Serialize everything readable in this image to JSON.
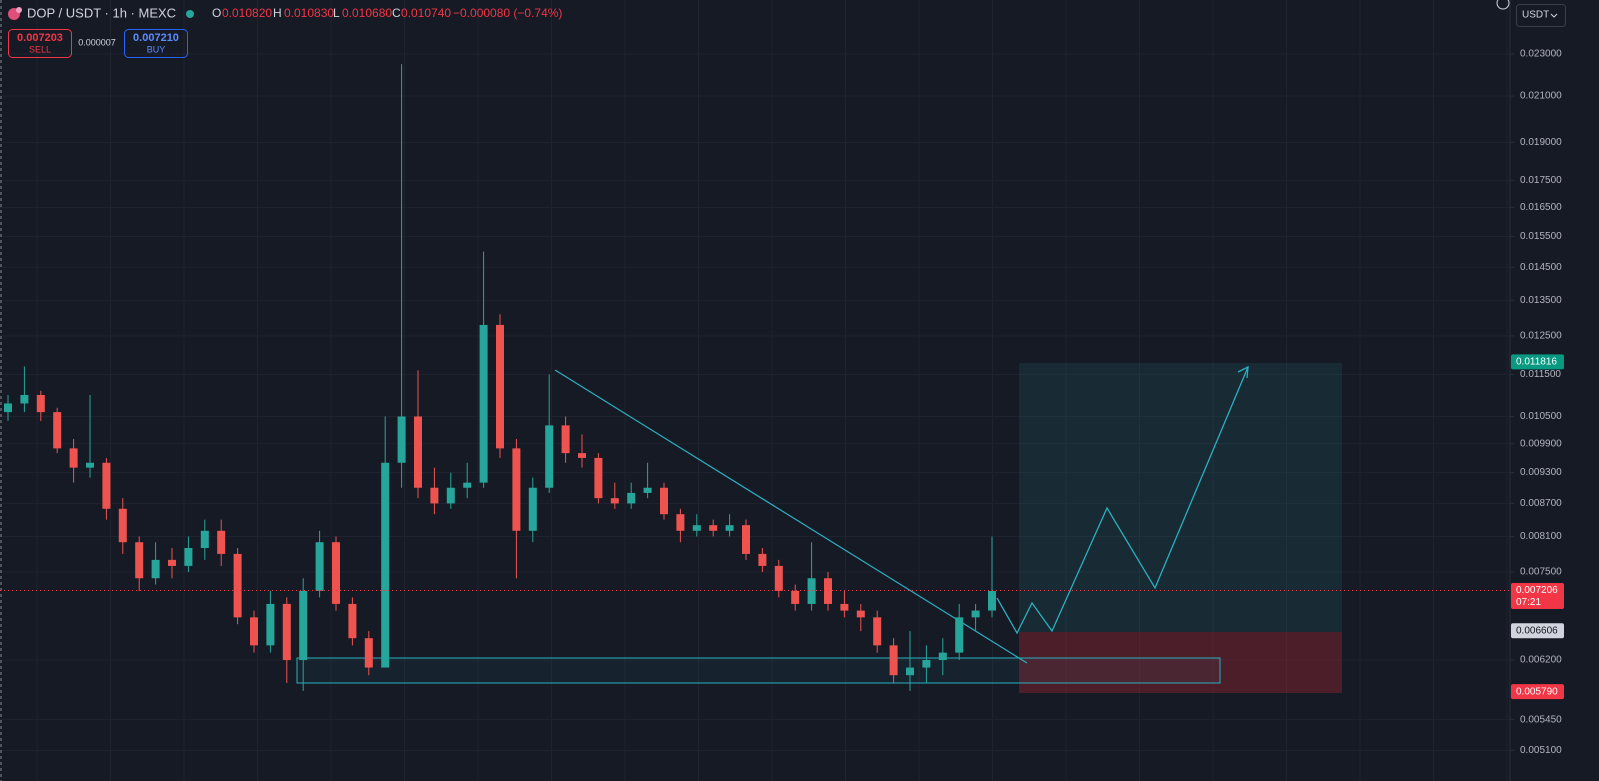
{
  "header": {
    "symbol": "DOP / USDT · 1h · MEXC",
    "o_label": "O",
    "open": "0.010820",
    "h_label": "H",
    "high": "0.010830",
    "l_label": "L",
    "low": "0.010680",
    "c_label": "C",
    "close": "0.010740",
    "change": "−0.000080 (−0.74%)",
    "sell_price": "0.007203",
    "sell_label": "SELL",
    "spread": "0.000007",
    "buy_price": "0.007210",
    "buy_label": "BUY",
    "currency": "USDT"
  },
  "chart_data": {
    "type": "candlestick",
    "log_scale": true,
    "grid": true,
    "up_color": "#26a69a",
    "down_color": "#ef5350",
    "ylim": [
      0.00493,
      0.02585
    ],
    "yticks": [
      {
        "value": 0.023,
        "label": "0.023000"
      },
      {
        "value": 0.021,
        "label": "0.021000"
      },
      {
        "value": 0.019,
        "label": "0.019000"
      },
      {
        "value": 0.0175,
        "label": "0.017500"
      },
      {
        "value": 0.0165,
        "label": "0.016500"
      },
      {
        "value": 0.0155,
        "label": "0.015500"
      },
      {
        "value": 0.0145,
        "label": "0.014500"
      },
      {
        "value": 0.0135,
        "label": "0.013500"
      },
      {
        "value": 0.0125,
        "label": "0.012500"
      },
      {
        "value": 0.0115,
        "label": "0.011500"
      },
      {
        "value": 0.0105,
        "label": "0.010500"
      },
      {
        "value": 0.0099,
        "label": "0.009900"
      },
      {
        "value": 0.0093,
        "label": "0.009300"
      },
      {
        "value": 0.0087,
        "label": "0.008700"
      },
      {
        "value": 0.0081,
        "label": "0.008100"
      },
      {
        "value": 0.0075,
        "label": "0.007500"
      },
      {
        "value": 0.0062,
        "label": "0.006200"
      },
      {
        "value": 0.00545,
        "label": "0.005450"
      },
      {
        "value": 0.0051,
        "label": "0.005100"
      }
    ],
    "candles": [
      [
        0.0106,
        0.011,
        0.0104,
        0.0108
      ],
      [
        0.0108,
        0.0117,
        0.0106,
        0.011
      ],
      [
        0.011,
        0.0111,
        0.0104,
        0.0106
      ],
      [
        0.0106,
        0.0107,
        0.0097,
        0.0098
      ],
      [
        0.0098,
        0.01,
        0.0091,
        0.0094
      ],
      [
        0.0094,
        0.011,
        0.0092,
        0.0095
      ],
      [
        0.0095,
        0.0096,
        0.0084,
        0.0086
      ],
      [
        0.0086,
        0.0088,
        0.0078,
        0.008
      ],
      [
        0.008,
        0.0081,
        0.0072,
        0.0074
      ],
      [
        0.0074,
        0.008,
        0.0073,
        0.0077
      ],
      [
        0.0077,
        0.0079,
        0.0074,
        0.0076
      ],
      [
        0.0076,
        0.0081,
        0.0075,
        0.0079
      ],
      [
        0.0079,
        0.0084,
        0.0077,
        0.0082
      ],
      [
        0.0082,
        0.0084,
        0.0076,
        0.0078
      ],
      [
        0.0078,
        0.0079,
        0.0067,
        0.0068
      ],
      [
        0.0068,
        0.0069,
        0.0063,
        0.0064
      ],
      [
        0.0064,
        0.0072,
        0.0063,
        0.007
      ],
      [
        0.007,
        0.0071,
        0.0059,
        0.0062
      ],
      [
        0.0062,
        0.0074,
        0.0058,
        0.0072
      ],
      [
        0.0072,
        0.0082,
        0.0071,
        0.008
      ],
      [
        0.008,
        0.0081,
        0.0069,
        0.007
      ],
      [
        0.007,
        0.0071,
        0.0064,
        0.0065
      ],
      [
        0.0065,
        0.0066,
        0.006,
        0.0061
      ],
      [
        0.0061,
        0.0105,
        0.0061,
        0.0095
      ],
      [
        0.0095,
        0.0225,
        0.009,
        0.0105
      ],
      [
        0.0105,
        0.0116,
        0.0088,
        0.009
      ],
      [
        0.009,
        0.0094,
        0.0085,
        0.0087
      ],
      [
        0.0087,
        0.0093,
        0.0086,
        0.009
      ],
      [
        0.009,
        0.0095,
        0.0088,
        0.0091
      ],
      [
        0.0091,
        0.015,
        0.009,
        0.0128
      ],
      [
        0.0128,
        0.0131,
        0.0096,
        0.0098
      ],
      [
        0.0098,
        0.01,
        0.0074,
        0.0082
      ],
      [
        0.0082,
        0.0092,
        0.008,
        0.009
      ],
      [
        0.009,
        0.0115,
        0.0089,
        0.0103
      ],
      [
        0.0103,
        0.0105,
        0.0095,
        0.0097
      ],
      [
        0.0097,
        0.0101,
        0.0094,
        0.0096
      ],
      [
        0.0096,
        0.0097,
        0.0087,
        0.0088
      ],
      [
        0.0088,
        0.0091,
        0.0086,
        0.0087
      ],
      [
        0.0087,
        0.0091,
        0.0086,
        0.0089
      ],
      [
        0.0089,
        0.0095,
        0.0088,
        0.009
      ],
      [
        0.009,
        0.0091,
        0.0084,
        0.0085
      ],
      [
        0.0085,
        0.0086,
        0.008,
        0.0082
      ],
      [
        0.0082,
        0.0085,
        0.0081,
        0.0083
      ],
      [
        0.0083,
        0.0084,
        0.0081,
        0.0082
      ],
      [
        0.0082,
        0.0085,
        0.0081,
        0.0083
      ],
      [
        0.0083,
        0.0084,
        0.0077,
        0.0078
      ],
      [
        0.0078,
        0.0079,
        0.0075,
        0.0076
      ],
      [
        0.0076,
        0.0077,
        0.0071,
        0.0072
      ],
      [
        0.0072,
        0.0073,
        0.0069,
        0.007
      ],
      [
        0.007,
        0.008,
        0.0069,
        0.0074
      ],
      [
        0.0074,
        0.0075,
        0.0069,
        0.007
      ],
      [
        0.007,
        0.0072,
        0.0068,
        0.0069
      ],
      [
        0.0069,
        0.007,
        0.0066,
        0.0068
      ],
      [
        0.0068,
        0.0069,
        0.0063,
        0.0064
      ],
      [
        0.0064,
        0.0065,
        0.0059,
        0.006
      ],
      [
        0.006,
        0.0066,
        0.0058,
        0.0061
      ],
      [
        0.0061,
        0.0064,
        0.0059,
        0.0062
      ],
      [
        0.0062,
        0.0065,
        0.006,
        0.0063
      ],
      [
        0.0063,
        0.007,
        0.0062,
        0.0068
      ],
      [
        0.0068,
        0.007,
        0.0066,
        0.0069
      ],
      [
        0.0069,
        0.0081,
        0.0068,
        0.0072
      ]
    ],
    "markers": [
      {
        "value": 0.011816,
        "label": "0.011816",
        "color": "#089981"
      },
      {
        "value": 0.007206,
        "label": "0.007206",
        "time": "07:21",
        "color": "#f23645",
        "dotted": true
      },
      {
        "value": 0.006606,
        "label": "0.006606",
        "color": "#d1d4dc"
      },
      {
        "value": 0.00579,
        "label": "0.005790",
        "color": "#f23645"
      }
    ]
  }
}
